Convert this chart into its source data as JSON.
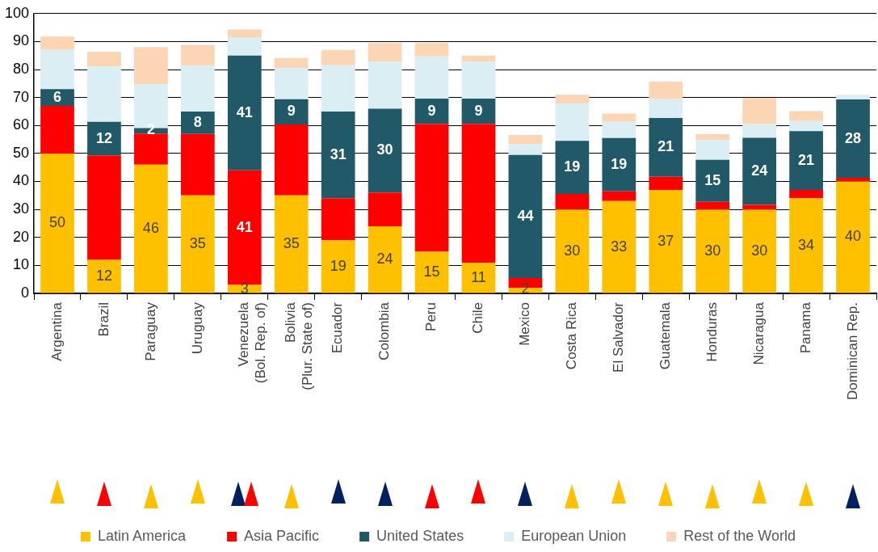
{
  "chart_data": {
    "type": "bar",
    "stacked": true,
    "categories": [
      "Argentina",
      "Brazil",
      "Paraguay",
      "Uruguay",
      "Venezuela (Bol. Rep. of)",
      "Bolivia (Plur. State of)",
      "Ecuador",
      "Colombia",
      "Peru",
      "Chile",
      "Mexico",
      "Costa Rica",
      "El Salvador",
      "Guatemala",
      "Honduras",
      "Nicaragua",
      "Panama",
      "Dominican Rep."
    ],
    "series": [
      {
        "name": "Latin America",
        "color": "#ffc000",
        "values": [
          50,
          12,
          46,
          35,
          3,
          35,
          19,
          24,
          15,
          11,
          2,
          30,
          33,
          37,
          30,
          30,
          34,
          40
        ],
        "value_labels": [
          "50",
          "12",
          "46",
          "35",
          "3",
          "35",
          "19",
          "24",
          "15",
          "11",
          "2",
          "30",
          "33",
          "37",
          "30",
          "30",
          "34",
          "40"
        ]
      },
      {
        "name": "Asia Pacific",
        "color": "#ff0000",
        "values": [
          17,
          37.3,
          11.1,
          22,
          41,
          25.4,
          15,
          12,
          45.6,
          49.6,
          3.5,
          5.5,
          3.5,
          4.7,
          2.7,
          1.6,
          3,
          1.3
        ],
        "value_labels": [
          null,
          null,
          null,
          null,
          "41",
          null,
          null,
          null,
          null,
          null,
          null,
          null,
          null,
          null,
          null,
          null,
          null,
          null
        ]
      },
      {
        "name": "United States",
        "color": "#215968",
        "values": [
          6,
          12,
          2,
          8,
          41,
          9,
          31,
          30,
          9,
          9,
          44,
          19,
          19,
          21,
          15,
          24,
          21,
          28
        ],
        "value_labels": [
          "6",
          "12",
          "2",
          "8",
          "41",
          "9",
          "31",
          "30",
          "9",
          "9",
          "44",
          "19",
          "19",
          "21",
          "15",
          "24",
          "21",
          "28"
        ]
      },
      {
        "name": "European Union",
        "color": "#daeef3",
        "values": [
          14,
          19.8,
          15.7,
          16.4,
          6.6,
          11.1,
          16.5,
          16.8,
          15.1,
          13.2,
          3.9,
          13.3,
          5.8,
          6.8,
          7.1,
          5,
          3.6,
          1.7
        ]
      },
      {
        "name": "Rest of the World",
        "color": "#fcd5b5",
        "values": [
          4.8,
          5.3,
          13.2,
          7.4,
          2.7,
          3.6,
          5.5,
          6.7,
          4.8,
          2.2,
          3.2,
          3.2,
          3,
          6.2,
          2.1,
          9.2,
          3.5,
          0
        ]
      }
    ],
    "ylim": [
      0,
      100
    ],
    "yticks": [
      0,
      10,
      20,
      30,
      40,
      50,
      60,
      70,
      80,
      90,
      100
    ],
    "grid": "y",
    "legend": "bottom"
  }
}
